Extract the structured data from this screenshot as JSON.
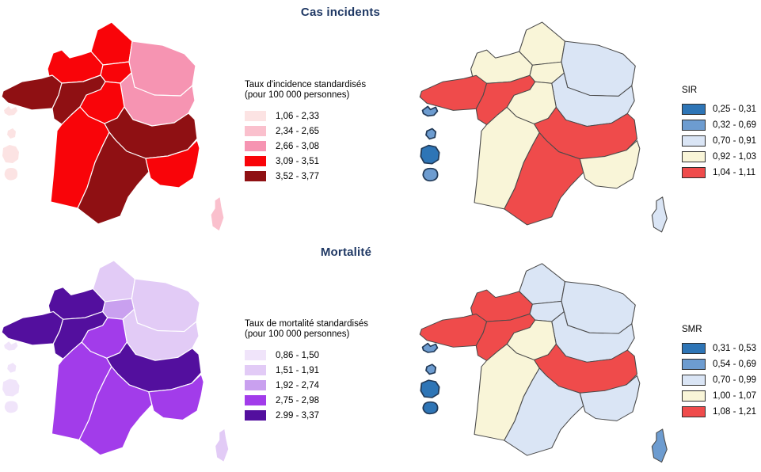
{
  "titles": {
    "incidents": "Cas incidents",
    "mortality": "Mortalité"
  },
  "palette": {
    "incidence": [
      "#FCE3E3",
      "#FAC0CD",
      "#F694B2",
      "#F90409",
      "#8F1013"
    ],
    "mortality": [
      "#F0E4FA",
      "#E2CBF6",
      "#C9A0EF",
      "#A23CEA",
      "#530F9E"
    ],
    "ratio": [
      "#2E75B6",
      "#6D9CD0",
      "#DAE5F5",
      "#F9F5D8",
      "#EF4B4B"
    ]
  },
  "legends": {
    "incidence": {
      "title_line1": "Taux d'incidence standardisés",
      "title_line2": "(pour 100 000 personnes)",
      "items": [
        "1,06 - 2,33",
        "2,34 - 2,65",
        "2,66 - 3,08",
        "3,09 - 3,51",
        "3,52 - 3,77"
      ]
    },
    "sir": {
      "title": "SIR",
      "items": [
        "0,25 - 0,31",
        "0,32 - 0,69",
        "0,70 - 0,91",
        "0,92 - 1,03",
        "1,04 - 1,11"
      ]
    },
    "mortality": {
      "title_line1": "Taux de mortalité standardisés",
      "title_line2": "(pour 100 000 personnes)",
      "items": [
        "0,86 - 1,50",
        "1,51 - 1,91",
        "1,92 - 2,74",
        "2,75 - 2,98",
        "2.99 - 3,37"
      ]
    },
    "smr": {
      "title": "SMR",
      "items": [
        "0,31 - 0,53",
        "0,54 - 0,69",
        "0,70 - 0,99",
        "1,00 - 1,07",
        "1,08 - 1,21"
      ]
    }
  },
  "maps": {
    "incidence": {
      "palette": "incidence",
      "region_stroke": "#FFFFFF",
      "region_stroke_width": 1.2,
      "island_stroke": "none",
      "island_stroke_width": 0,
      "levels": {
        "HDF": 4,
        "NOR": 4,
        "IDF": 4,
        "GE": 3,
        "BFC": 3,
        "CVL": 4,
        "BRE": 5,
        "PDL": 5,
        "NAQ": 4,
        "ARA": 5,
        "OCC": 5,
        "PAC": 4,
        "COR": 2,
        "GUA": 1,
        "MTQ": 1,
        "GUY": 1,
        "REU": 1
      }
    },
    "sir": {
      "palette": "ratio",
      "region_stroke": "#4A4A4A",
      "region_stroke_width": 1,
      "island_stroke": "#223A57",
      "island_stroke_width": 1.6,
      "levels": {
        "HDF": 4,
        "NOR": 4,
        "IDF": 4,
        "GE": 3,
        "BFC": 3,
        "CVL": 4,
        "BRE": 5,
        "PDL": 5,
        "NAQ": 4,
        "ARA": 5,
        "OCC": 5,
        "PAC": 4,
        "COR": 3,
        "GUA": 2,
        "MTQ": 2,
        "GUY": 1,
        "REU": 2
      }
    },
    "mortality": {
      "palette": "mortality",
      "region_stroke": "#FFFFFF",
      "region_stroke_width": 1.2,
      "island_stroke": "none",
      "island_stroke_width": 0,
      "levels": {
        "HDF": 2,
        "NOR": 5,
        "IDF": 3,
        "GE": 2,
        "BFC": 2,
        "CVL": 4,
        "BRE": 5,
        "PDL": 5,
        "NAQ": 4,
        "ARA": 5,
        "OCC": 4,
        "PAC": 4,
        "COR": 2,
        "GUA": 1,
        "MTQ": 1,
        "GUY": 1,
        "REU": 1
      }
    },
    "smr": {
      "palette": "ratio",
      "region_stroke": "#4A4A4A",
      "region_stroke_width": 1,
      "island_stroke": "#223A57",
      "island_stroke_width": 1.6,
      "levels": {
        "HDF": 3,
        "NOR": 5,
        "IDF": 3,
        "GE": 3,
        "BFC": 3,
        "CVL": 4,
        "BRE": 5,
        "PDL": 5,
        "NAQ": 4,
        "ARA": 5,
        "OCC": 3,
        "PAC": 3,
        "COR": 2,
        "GUA": 2,
        "MTQ": 2,
        "GUY": 1,
        "REU": 1
      }
    }
  }
}
